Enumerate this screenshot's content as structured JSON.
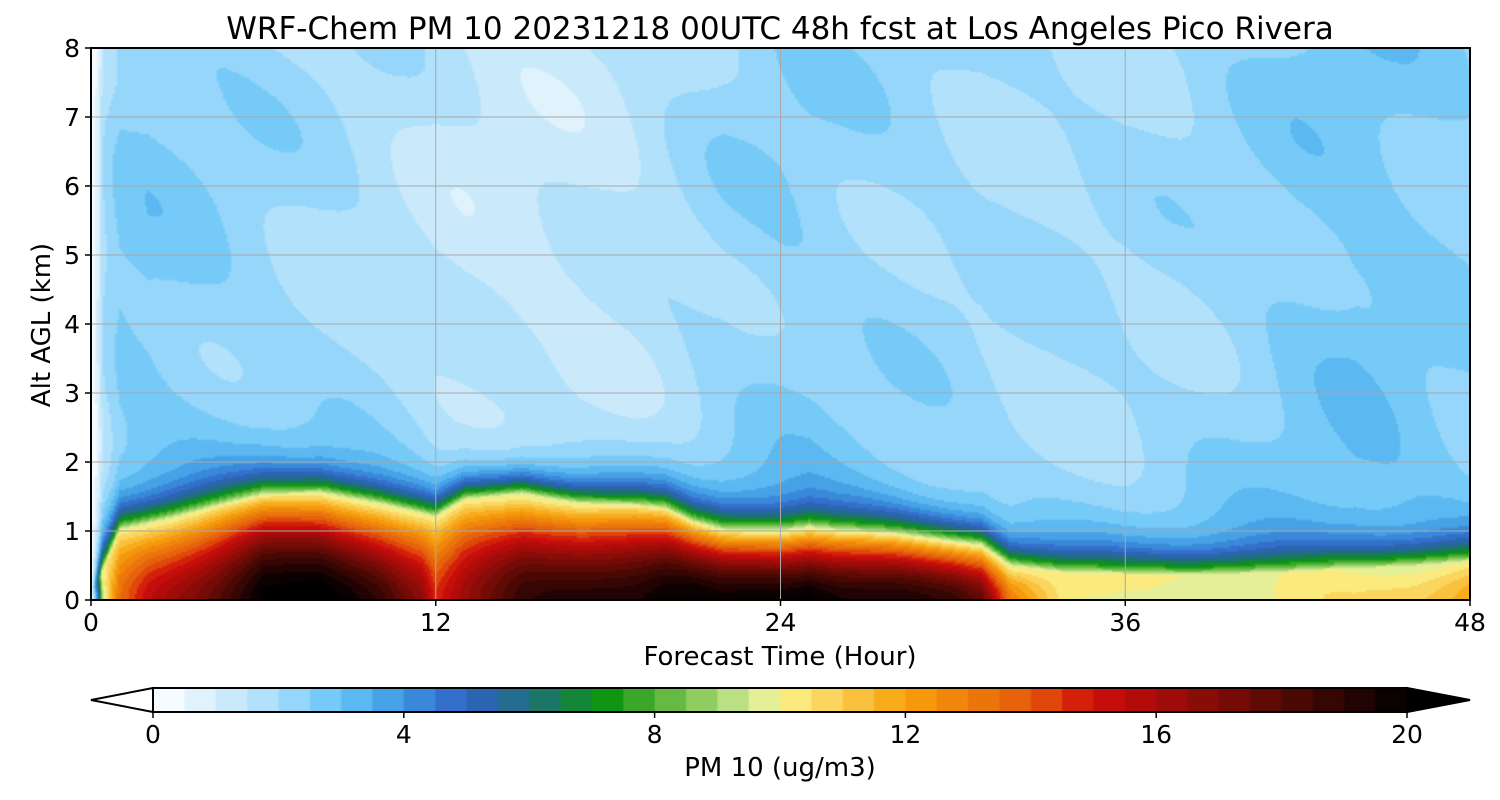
{
  "chart_data": {
    "type": "heatmap",
    "title": "WRF-Chem PM 10  20231218 00UTC 48h fcst at Los Angeles Pico Rivera",
    "xlabel": "Forecast Time (Hour)",
    "ylabel": "Alt AGL (km)",
    "xlim": [
      0,
      48
    ],
    "ylim": [
      0,
      8
    ],
    "x_ticks": [
      0,
      12,
      24,
      36,
      48
    ],
    "y_ticks": [
      0,
      1,
      2,
      3,
      4,
      5,
      6,
      7,
      8
    ],
    "grid": true,
    "colorbar": {
      "label": "PM 10  (ug/m3)",
      "range": [
        0,
        20
      ],
      "ticks": [
        0,
        4,
        8,
        12,
        16,
        20
      ],
      "extend": "both",
      "orientation": "horizontal",
      "stops": [
        {
          "v": 0,
          "color": "#ffffff"
        },
        {
          "v": 1.0,
          "color": "#d6effc"
        },
        {
          "v": 2.0,
          "color": "#a6dcfb"
        },
        {
          "v": 3.0,
          "color": "#66c4f6"
        },
        {
          "v": 4.0,
          "color": "#3d95e0"
        },
        {
          "v": 5.0,
          "color": "#2f62c4"
        },
        {
          "v": 6.0,
          "color": "#1f6e7d"
        },
        {
          "v": 7.2,
          "color": "#0a9310"
        },
        {
          "v": 8.5,
          "color": "#7cc34f"
        },
        {
          "v": 9.6,
          "color": "#d7ec9e"
        },
        {
          "v": 10.0,
          "color": "#fbf58f"
        },
        {
          "v": 12.0,
          "color": "#f7a10c"
        },
        {
          "v": 14.0,
          "color": "#e45a0b"
        },
        {
          "v": 15.0,
          "color": "#cf0d0b"
        },
        {
          "v": 17.5,
          "color": "#6a0b06"
        },
        {
          "v": 20.0,
          "color": "#000000"
        }
      ],
      "under_color": "#ffffff",
      "over_color": "#000000"
    },
    "profile": {
      "hours": [
        0,
        0.5,
        1,
        2,
        4,
        6,
        8,
        10,
        11.5,
        12,
        13,
        15,
        17,
        19,
        20,
        21,
        22,
        24,
        25,
        26,
        28,
        30,
        31,
        32,
        34,
        36,
        38,
        40,
        42,
        44,
        46,
        48
      ],
      "layer_top_km": [
        0.1,
        0.5,
        1.0,
        1.1,
        1.3,
        1.5,
        1.55,
        1.4,
        1.25,
        1.2,
        1.45,
        1.55,
        1.4,
        1.35,
        1.3,
        1.1,
        1.0,
        1.0,
        1.05,
        1.0,
        0.95,
        0.85,
        0.8,
        0.5,
        0.38,
        0.35,
        0.35,
        0.38,
        0.4,
        0.45,
        0.5,
        0.55
      ],
      "near_surface_peak": [
        5,
        10,
        13,
        15,
        17.5,
        20.5,
        20.5,
        19,
        17,
        15,
        16.5,
        18.5,
        19,
        19.5,
        20,
        20,
        19.5,
        20,
        20.5,
        20,
        19.5,
        18.5,
        17.5,
        13,
        10,
        9.5,
        9.5,
        10,
        10.5,
        10.5,
        11,
        12
      ],
      "aloft_background": [
        1.0,
        2.0,
        2.5,
        2.6,
        2.4,
        2.2,
        2.0,
        1.8,
        1.6,
        1.5,
        1.4,
        1.3,
        1.4,
        1.6,
        1.8,
        2.0,
        2.2,
        2.4,
        2.4,
        2.3,
        2.2,
        2.1,
        2.0,
        2.0,
        2.0,
        2.0,
        2.1,
        2.3,
        2.6,
        2.8,
        2.6,
        2.4
      ]
    }
  }
}
